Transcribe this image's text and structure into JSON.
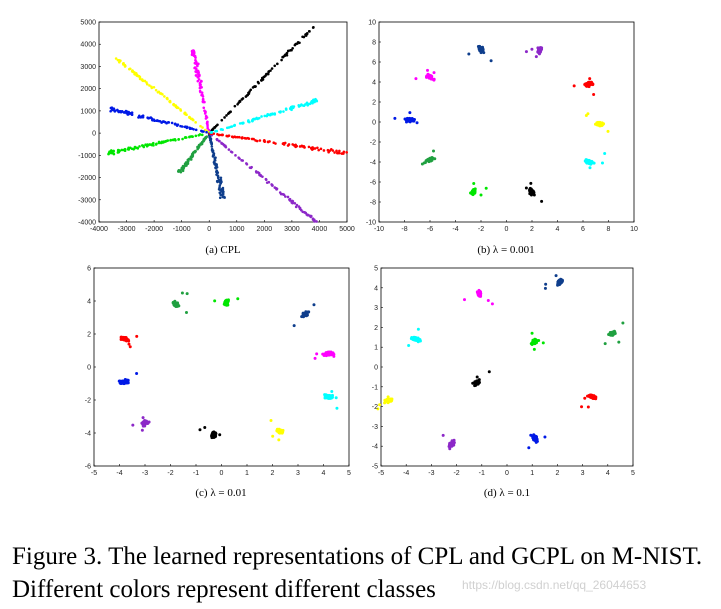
{
  "figure": {
    "caption": "Figure 3. The learned representations of CPL and GCPL on M-NIST. Different colors represent different classes",
    "watermark": "https://blog.csdn.net/qq_26044653"
  },
  "colors": {
    "black": "#000000",
    "magenta": "#ff00ff",
    "blue": "#0019e6",
    "navy": "#0f3e8c",
    "yellow": "#ffff00",
    "green": "#00e600",
    "seagreen": "#20a040",
    "purple": "#8c28c8",
    "red": "#ff0000",
    "cyan": "#00ffff"
  },
  "chart_data": [
    {
      "type": "scatter",
      "subplot_label": "(a) CPL",
      "xlim": [
        -4000,
        5000
      ],
      "ylim": [
        -4000,
        5000
      ],
      "xticks": [
        -4000,
        -3000,
        -2000,
        -1000,
        0,
        1000,
        2000,
        3000,
        4000,
        5000
      ],
      "yticks": [
        -4000,
        -3000,
        -2000,
        -1000,
        0,
        1000,
        2000,
        3000,
        4000,
        5000
      ],
      "series": [
        {
          "color": "black",
          "start": [
            0,
            0
          ],
          "end": [
            3800,
            4800
          ]
        },
        {
          "color": "magenta",
          "start": [
            0,
            0
          ],
          "end": [
            -600,
            3800
          ]
        },
        {
          "color": "yellow",
          "start": [
            0,
            0
          ],
          "end": [
            -3400,
            3400
          ]
        },
        {
          "color": "blue",
          "start": [
            0,
            0
          ],
          "end": [
            -3600,
            1100
          ]
        },
        {
          "color": "green",
          "start": [
            0,
            0
          ],
          "end": [
            -3700,
            -900
          ]
        },
        {
          "color": "seagreen",
          "start": [
            0,
            0
          ],
          "end": [
            -1100,
            -1800
          ]
        },
        {
          "color": "navy",
          "start": [
            0,
            0
          ],
          "end": [
            500,
            -2900
          ]
        },
        {
          "color": "purple",
          "start": [
            0,
            0
          ],
          "end": [
            3900,
            -4000
          ]
        },
        {
          "color": "red",
          "start": [
            0,
            0
          ],
          "end": [
            5000,
            -900
          ]
        },
        {
          "color": "cyan",
          "start": [
            0,
            0
          ],
          "end": [
            4000,
            1500
          ]
        }
      ]
    },
    {
      "type": "scatter",
      "subplot_label": "(b) λ = 0.001",
      "xlim": [
        -10,
        10
      ],
      "ylim": [
        -10,
        10
      ],
      "xticks": [
        -10,
        -8,
        -6,
        -4,
        -2,
        0,
        2,
        4,
        6,
        8,
        10
      ],
      "yticks": [
        -10,
        -8,
        -6,
        -4,
        -2,
        0,
        2,
        4,
        6,
        8,
        10
      ],
      "series": [
        {
          "color": "navy",
          "center": [
            -2.0,
            7.3
          ]
        },
        {
          "color": "purple",
          "center": [
            2.6,
            7.2
          ]
        },
        {
          "color": "magenta",
          "center": [
            -6.0,
            4.5
          ]
        },
        {
          "color": "red",
          "center": [
            6.5,
            3.8
          ]
        },
        {
          "color": "yellow",
          "center": [
            7.3,
            -0.2
          ]
        },
        {
          "color": "blue",
          "center": [
            -7.6,
            0.2
          ]
        },
        {
          "color": "seagreen",
          "center": [
            -6.0,
            -3.8
          ]
        },
        {
          "color": "cyan",
          "center": [
            6.5,
            -4.0
          ]
        },
        {
          "color": "green",
          "center": [
            -2.6,
            -7.0
          ]
        },
        {
          "color": "black",
          "center": [
            2.0,
            -7.0
          ]
        }
      ]
    },
    {
      "type": "scatter",
      "subplot_label": "(c) λ = 0.01",
      "xlim": [
        -5,
        5
      ],
      "ylim": [
        -6,
        6
      ],
      "xticks": [
        -5,
        -4,
        -3,
        -2,
        -1,
        0,
        1,
        2,
        3,
        4,
        5
      ],
      "yticks": [
        -6,
        -4,
        -2,
        0,
        2,
        4,
        6
      ],
      "series": [
        {
          "color": "seagreen",
          "center": [
            -1.8,
            3.8
          ]
        },
        {
          "color": "green",
          "center": [
            0.2,
            3.9
          ]
        },
        {
          "color": "navy",
          "center": [
            3.3,
            3.2
          ]
        },
        {
          "color": "red",
          "center": [
            -3.8,
            1.7
          ]
        },
        {
          "color": "magenta",
          "center": [
            4.2,
            0.8
          ]
        },
        {
          "color": "blue",
          "center": [
            -3.8,
            -0.9
          ]
        },
        {
          "color": "cyan",
          "center": [
            4.2,
            -1.8
          ]
        },
        {
          "color": "purple",
          "center": [
            -3.0,
            -3.4
          ]
        },
        {
          "color": "black",
          "center": [
            -0.3,
            -4.1
          ]
        },
        {
          "color": "yellow",
          "center": [
            2.3,
            -3.9
          ]
        }
      ]
    },
    {
      "type": "scatter",
      "subplot_label": "(d) λ = 0.1",
      "xlim": [
        -5,
        5
      ],
      "ylim": [
        -5,
        5
      ],
      "xticks": [
        -5,
        -4,
        -3,
        -2,
        -1,
        0,
        1,
        2,
        3,
        4,
        5
      ],
      "yticks": [
        -5,
        -4,
        -3,
        -2,
        -1,
        0,
        1,
        2,
        3,
        4,
        5
      ],
      "series": [
        {
          "color": "magenta",
          "center": [
            -1.1,
            3.7
          ]
        },
        {
          "color": "navy",
          "center": [
            2.1,
            4.3
          ]
        },
        {
          "color": "cyan",
          "center": [
            -3.6,
            1.4
          ]
        },
        {
          "color": "green",
          "center": [
            1.1,
            1.3
          ]
        },
        {
          "color": "seagreen",
          "center": [
            4.2,
            1.7
          ]
        },
        {
          "color": "black",
          "center": [
            -1.2,
            -0.8
          ]
        },
        {
          "color": "yellow",
          "center": [
            -4.7,
            -1.7
          ]
        },
        {
          "color": "red",
          "center": [
            3.4,
            -1.5
          ]
        },
        {
          "color": "purple",
          "center": [
            -2.2,
            -3.9
          ]
        },
        {
          "color": "blue",
          "center": [
            1.1,
            -3.6
          ]
        }
      ]
    }
  ]
}
